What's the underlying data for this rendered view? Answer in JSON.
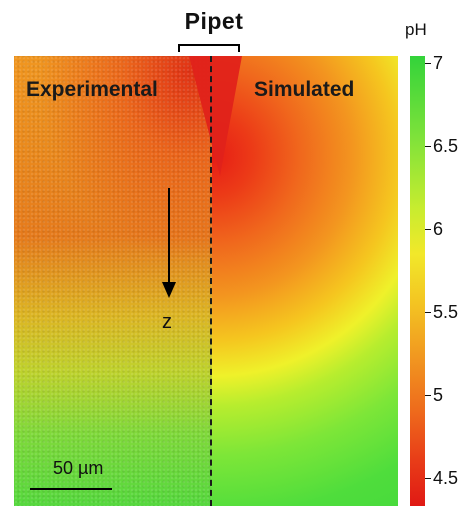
{
  "header": {
    "pipet_label": "Pipet"
  },
  "panels": {
    "experimental_title": "Experimental",
    "simulated_title": "Simulated"
  },
  "annotations": {
    "z_axis_label": "z",
    "scale_bar_label": "50 µm"
  },
  "colorbar": {
    "title": "pH",
    "ticks": [
      "7",
      "6.5",
      "6",
      "5.5",
      "5",
      "4.5"
    ],
    "colors": {
      "high": "#33d33a",
      "mid": "#f2e82a",
      "low": "#e01914"
    }
  }
}
